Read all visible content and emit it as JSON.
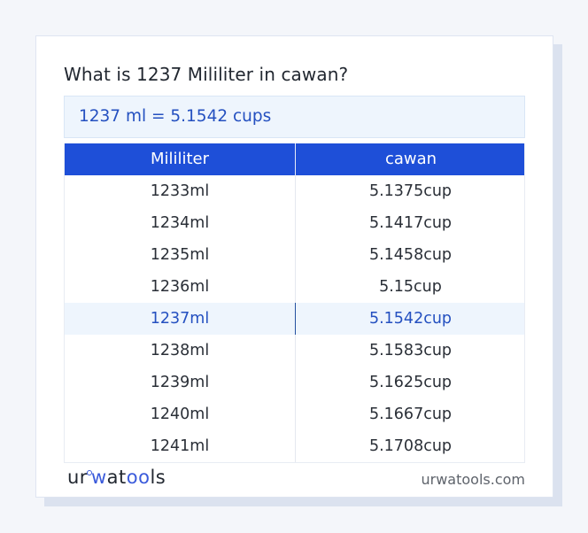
{
  "title": "What is 1237 Mililiter in cawan?",
  "result": "1237 ml = 5.1542 cups",
  "table": {
    "headers": [
      "Mililiter",
      "cawan"
    ],
    "rows": [
      {
        "ml": "1233ml",
        "cup": "5.1375cup",
        "highlight": false
      },
      {
        "ml": "1234ml",
        "cup": "5.1417cup",
        "highlight": false
      },
      {
        "ml": "1235ml",
        "cup": "5.1458cup",
        "highlight": false
      },
      {
        "ml": "1236ml",
        "cup": "5.15cup",
        "highlight": false
      },
      {
        "ml": "1237ml",
        "cup": "5.1542cup",
        "highlight": true
      },
      {
        "ml": "1238ml",
        "cup": "5.1583cup",
        "highlight": false
      },
      {
        "ml": "1239ml",
        "cup": "5.1625cup",
        "highlight": false
      },
      {
        "ml": "1240ml",
        "cup": "5.1667cup",
        "highlight": false
      },
      {
        "ml": "1241ml",
        "cup": "5.1708cup",
        "highlight": false
      }
    ]
  },
  "footer": {
    "logo": {
      "part1": "ur",
      "part2": "w",
      "part3": "at",
      "part4": "oo",
      "part5": "ls"
    },
    "url": "urwatools.com"
  },
  "colors": {
    "accent": "#1e4fd8",
    "highlight_text": "#2450c0",
    "highlight_bg": "#eef5fd"
  }
}
